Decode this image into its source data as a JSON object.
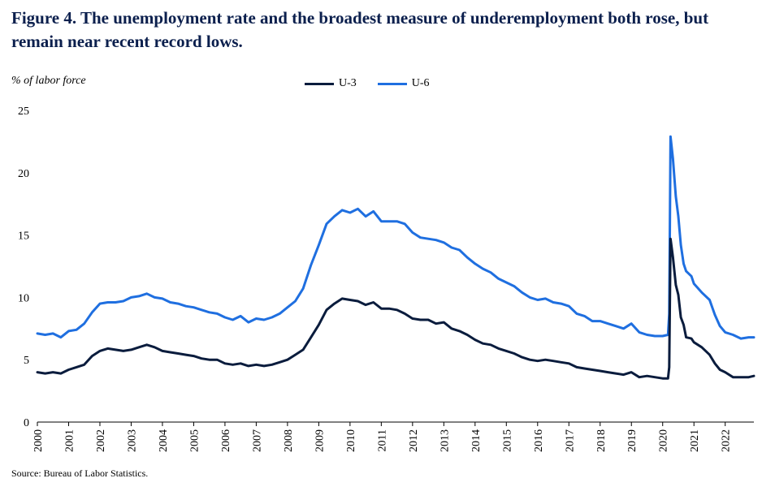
{
  "title": "Figure 4. The unemployment rate and the broadest measure of underemployment both rose, but remain near recent record lows.",
  "units_label": "% of labor force",
  "source": "Source: Bureau of Labor Statistics.",
  "colors": {
    "U-3": "#0a1c3d",
    "U-6": "#1f6fe0",
    "axis": "#000000"
  },
  "chart_data": {
    "type": "line",
    "ylim": [
      0,
      25
    ],
    "yticks": [
      0,
      5,
      10,
      15,
      20,
      25
    ],
    "xlim": [
      2000,
      2022.917
    ],
    "xticks": [
      "2000",
      "2001",
      "2002",
      "2003",
      "2004",
      "2005",
      "2006",
      "2007",
      "2008",
      "2009",
      "2010",
      "2011",
      "2012",
      "2013",
      "2014",
      "2015",
      "2016",
      "2017",
      "2018",
      "2019",
      "2020",
      "2021",
      "2022"
    ],
    "grid": false,
    "legend_position": "top-center",
    "series": [
      {
        "name": "U-3",
        "points": [
          [
            2000.0,
            4.0
          ],
          [
            2000.25,
            3.9
          ],
          [
            2000.5,
            4.0
          ],
          [
            2000.75,
            3.9
          ],
          [
            2001.0,
            4.2
          ],
          [
            2001.25,
            4.4
          ],
          [
            2001.5,
            4.6
          ],
          [
            2001.75,
            5.3
          ],
          [
            2002.0,
            5.7
          ],
          [
            2002.25,
            5.9
          ],
          [
            2002.5,
            5.8
          ],
          [
            2002.75,
            5.7
          ],
          [
            2003.0,
            5.8
          ],
          [
            2003.25,
            6.0
          ],
          [
            2003.5,
            6.2
          ],
          [
            2003.75,
            6.0
          ],
          [
            2004.0,
            5.7
          ],
          [
            2004.25,
            5.6
          ],
          [
            2004.5,
            5.5
          ],
          [
            2004.75,
            5.4
          ],
          [
            2005.0,
            5.3
          ],
          [
            2005.25,
            5.1
          ],
          [
            2005.5,
            5.0
          ],
          [
            2005.75,
            5.0
          ],
          [
            2006.0,
            4.7
          ],
          [
            2006.25,
            4.6
          ],
          [
            2006.5,
            4.7
          ],
          [
            2006.75,
            4.5
          ],
          [
            2007.0,
            4.6
          ],
          [
            2007.25,
            4.5
          ],
          [
            2007.5,
            4.6
          ],
          [
            2007.75,
            4.8
          ],
          [
            2008.0,
            5.0
          ],
          [
            2008.25,
            5.4
          ],
          [
            2008.5,
            5.8
          ],
          [
            2008.75,
            6.8
          ],
          [
            2009.0,
            7.8
          ],
          [
            2009.25,
            9.0
          ],
          [
            2009.5,
            9.5
          ],
          [
            2009.75,
            9.9
          ],
          [
            2010.0,
            9.8
          ],
          [
            2010.25,
            9.7
          ],
          [
            2010.5,
            9.4
          ],
          [
            2010.75,
            9.6
          ],
          [
            2011.0,
            9.1
          ],
          [
            2011.25,
            9.1
          ],
          [
            2011.5,
            9.0
          ],
          [
            2011.75,
            8.7
          ],
          [
            2012.0,
            8.3
          ],
          [
            2012.25,
            8.2
          ],
          [
            2012.5,
            8.2
          ],
          [
            2012.75,
            7.9
          ],
          [
            2013.0,
            8.0
          ],
          [
            2013.25,
            7.5
          ],
          [
            2013.5,
            7.3
          ],
          [
            2013.75,
            7.0
          ],
          [
            2014.0,
            6.6
          ],
          [
            2014.25,
            6.3
          ],
          [
            2014.5,
            6.2
          ],
          [
            2014.75,
            5.9
          ],
          [
            2015.0,
            5.7
          ],
          [
            2015.25,
            5.5
          ],
          [
            2015.5,
            5.2
          ],
          [
            2015.75,
            5.0
          ],
          [
            2016.0,
            4.9
          ],
          [
            2016.25,
            5.0
          ],
          [
            2016.5,
            4.9
          ],
          [
            2016.75,
            4.8
          ],
          [
            2017.0,
            4.7
          ],
          [
            2017.25,
            4.4
          ],
          [
            2017.5,
            4.3
          ],
          [
            2017.75,
            4.2
          ],
          [
            2018.0,
            4.1
          ],
          [
            2018.25,
            4.0
          ],
          [
            2018.5,
            3.9
          ],
          [
            2018.75,
            3.8
          ],
          [
            2019.0,
            4.0
          ],
          [
            2019.25,
            3.6
          ],
          [
            2019.5,
            3.7
          ],
          [
            2019.75,
            3.6
          ],
          [
            2020.0,
            3.5
          ],
          [
            2020.17,
            3.5
          ],
          [
            2020.21,
            4.4
          ],
          [
            2020.25,
            14.7
          ],
          [
            2020.33,
            13.2
          ],
          [
            2020.42,
            11.0
          ],
          [
            2020.5,
            10.2
          ],
          [
            2020.58,
            8.4
          ],
          [
            2020.67,
            7.8
          ],
          [
            2020.75,
            6.8
          ],
          [
            2020.92,
            6.7
          ],
          [
            2021.0,
            6.4
          ],
          [
            2021.25,
            6.0
          ],
          [
            2021.5,
            5.4
          ],
          [
            2021.67,
            4.7
          ],
          [
            2021.83,
            4.2
          ],
          [
            2022.0,
            4.0
          ],
          [
            2022.25,
            3.6
          ],
          [
            2022.5,
            3.6
          ],
          [
            2022.75,
            3.6
          ],
          [
            2022.917,
            3.7
          ]
        ]
      },
      {
        "name": "U-6",
        "points": [
          [
            2000.0,
            7.1
          ],
          [
            2000.25,
            7.0
          ],
          [
            2000.5,
            7.1
          ],
          [
            2000.75,
            6.8
          ],
          [
            2001.0,
            7.3
          ],
          [
            2001.25,
            7.4
          ],
          [
            2001.5,
            7.9
          ],
          [
            2001.75,
            8.8
          ],
          [
            2002.0,
            9.5
          ],
          [
            2002.25,
            9.6
          ],
          [
            2002.5,
            9.6
          ],
          [
            2002.75,
            9.7
          ],
          [
            2003.0,
            10.0
          ],
          [
            2003.25,
            10.1
          ],
          [
            2003.5,
            10.3
          ],
          [
            2003.75,
            10.0
          ],
          [
            2004.0,
            9.9
          ],
          [
            2004.25,
            9.6
          ],
          [
            2004.5,
            9.5
          ],
          [
            2004.75,
            9.3
          ],
          [
            2005.0,
            9.2
          ],
          [
            2005.25,
            9.0
          ],
          [
            2005.5,
            8.8
          ],
          [
            2005.75,
            8.7
          ],
          [
            2006.0,
            8.4
          ],
          [
            2006.25,
            8.2
          ],
          [
            2006.5,
            8.5
          ],
          [
            2006.75,
            8.0
          ],
          [
            2007.0,
            8.3
          ],
          [
            2007.25,
            8.2
          ],
          [
            2007.5,
            8.4
          ],
          [
            2007.75,
            8.7
          ],
          [
            2008.0,
            9.2
          ],
          [
            2008.25,
            9.7
          ],
          [
            2008.5,
            10.7
          ],
          [
            2008.75,
            12.6
          ],
          [
            2009.0,
            14.2
          ],
          [
            2009.25,
            15.9
          ],
          [
            2009.5,
            16.5
          ],
          [
            2009.75,
            17.0
          ],
          [
            2010.0,
            16.8
          ],
          [
            2010.25,
            17.1
          ],
          [
            2010.5,
            16.5
          ],
          [
            2010.75,
            16.9
          ],
          [
            2011.0,
            16.1
          ],
          [
            2011.25,
            16.1
          ],
          [
            2011.5,
            16.1
          ],
          [
            2011.75,
            15.9
          ],
          [
            2012.0,
            15.2
          ],
          [
            2012.25,
            14.8
          ],
          [
            2012.5,
            14.7
          ],
          [
            2012.75,
            14.6
          ],
          [
            2013.0,
            14.4
          ],
          [
            2013.25,
            14.0
          ],
          [
            2013.5,
            13.8
          ],
          [
            2013.75,
            13.2
          ],
          [
            2014.0,
            12.7
          ],
          [
            2014.25,
            12.3
          ],
          [
            2014.5,
            12.0
          ],
          [
            2014.75,
            11.5
          ],
          [
            2015.0,
            11.2
          ],
          [
            2015.25,
            10.9
          ],
          [
            2015.5,
            10.4
          ],
          [
            2015.75,
            10.0
          ],
          [
            2016.0,
            9.8
          ],
          [
            2016.25,
            9.9
          ],
          [
            2016.5,
            9.6
          ],
          [
            2016.75,
            9.5
          ],
          [
            2017.0,
            9.3
          ],
          [
            2017.25,
            8.7
          ],
          [
            2017.5,
            8.5
          ],
          [
            2017.75,
            8.1
          ],
          [
            2018.0,
            8.1
          ],
          [
            2018.25,
            7.9
          ],
          [
            2018.5,
            7.7
          ],
          [
            2018.75,
            7.5
          ],
          [
            2019.0,
            7.9
          ],
          [
            2019.25,
            7.2
          ],
          [
            2019.5,
            7.0
          ],
          [
            2019.75,
            6.9
          ],
          [
            2020.0,
            6.9
          ],
          [
            2020.17,
            7.0
          ],
          [
            2020.21,
            8.7
          ],
          [
            2020.25,
            22.9
          ],
          [
            2020.33,
            21.1
          ],
          [
            2020.42,
            18.1
          ],
          [
            2020.5,
            16.5
          ],
          [
            2020.58,
            14.2
          ],
          [
            2020.67,
            12.7
          ],
          [
            2020.75,
            12.1
          ],
          [
            2020.92,
            11.7
          ],
          [
            2021.0,
            11.1
          ],
          [
            2021.25,
            10.4
          ],
          [
            2021.5,
            9.8
          ],
          [
            2021.67,
            8.6
          ],
          [
            2021.83,
            7.7
          ],
          [
            2022.0,
            7.2
          ],
          [
            2022.25,
            7.0
          ],
          [
            2022.5,
            6.7
          ],
          [
            2022.75,
            6.8
          ],
          [
            2022.917,
            6.8
          ]
        ]
      }
    ]
  }
}
